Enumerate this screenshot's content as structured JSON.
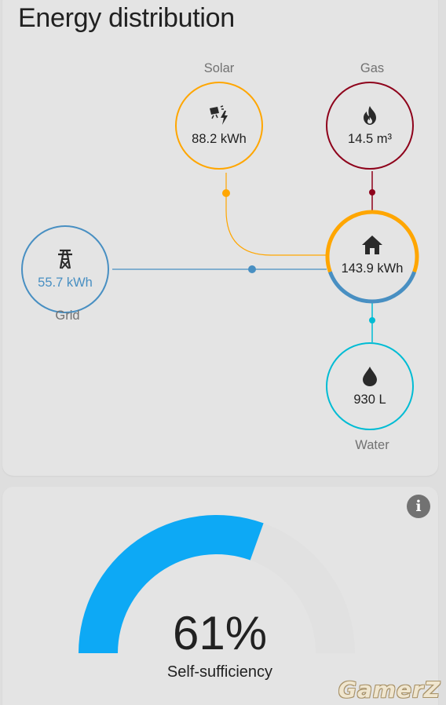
{
  "energy_card": {
    "title": "Energy distribution",
    "solar": {
      "label": "Solar",
      "value": "88.2 kWh",
      "icon": "solar-power-icon",
      "color": "#ffa600"
    },
    "gas": {
      "label": "Gas",
      "value": "14.5 m³",
      "icon": "fire-icon",
      "color": "#8e021b"
    },
    "grid": {
      "label": "Grid",
      "value": "55.7 kWh",
      "icon": "transmission-tower-icon",
      "color": "#488fc2"
    },
    "home": {
      "value": "143.9 kWh",
      "icon": "home-icon",
      "solar_share": 0.61,
      "grid_share": 0.39
    },
    "water": {
      "label": "Water",
      "value": "930 L",
      "icon": "water-drop-icon",
      "color": "#00bcd4"
    }
  },
  "self_sufficiency_card": {
    "value": "61%",
    "label": "Self-sufficiency",
    "fraction": 0.61,
    "gauge_color": "#0da9f5",
    "info_icon": "information-icon"
  },
  "watermark": "GamerZ"
}
